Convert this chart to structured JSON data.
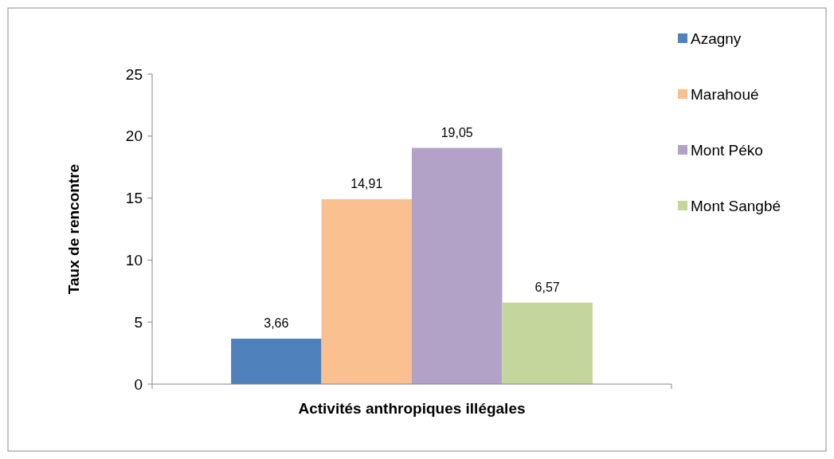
{
  "chart_data": {
    "type": "bar",
    "xlabel": "Activités anthropiques illégales",
    "ylabel": "Taux de rencontre",
    "categories": [
      null
    ],
    "series": [
      {
        "name": "Azagny",
        "color": "#4f81bd",
        "values": [
          3.66
        ],
        "value_labels": [
          "3,66"
        ]
      },
      {
        "name": "Marahoué",
        "color": "#fac090",
        "values": [
          14.91
        ],
        "value_labels": [
          "14,91"
        ]
      },
      {
        "name": "Mont Péko",
        "color": "#b3a2c7",
        "values": [
          19.05
        ],
        "value_labels": [
          "19,05"
        ]
      },
      {
        "name": "Mont Sangbé",
        "color": "#c3d69b",
        "values": [
          6.57
        ],
        "value_labels": [
          "6,57"
        ]
      }
    ],
    "ylim": [
      0,
      25
    ],
    "yticks": [
      0,
      5,
      10,
      15,
      20,
      25
    ],
    "grid": false,
    "legend": "right"
  }
}
